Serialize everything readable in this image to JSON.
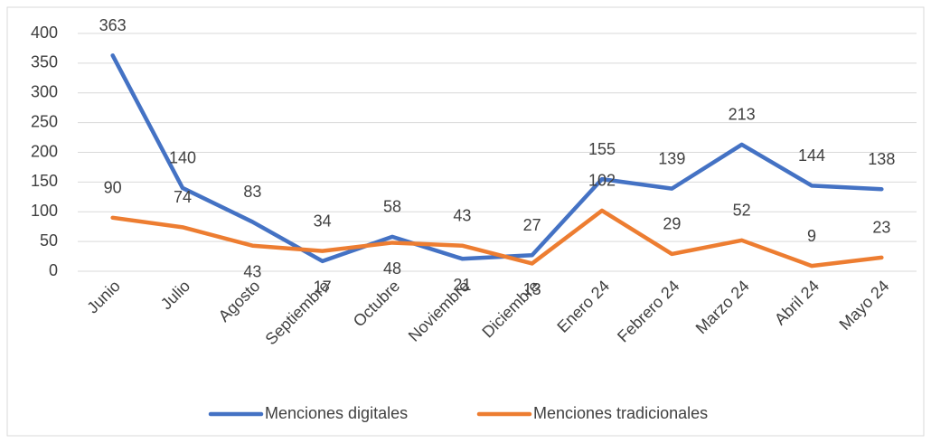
{
  "chart_data": {
    "type": "line",
    "categories": [
      "Junio",
      "Julio",
      "Agosto",
      "Septiembre",
      "Octubre",
      "Noviembre",
      "Diciembre",
      "Enero 24",
      "Febrero 24",
      "Marzo 24",
      "Abril 24",
      "Mayo 24"
    ],
    "series": [
      {
        "name": "Menciones digitales",
        "color": "#4472c4",
        "values": [
          363,
          140,
          83,
          17,
          58,
          21,
          27,
          155,
          139,
          213,
          144,
          138
        ]
      },
      {
        "name": "Menciones tradicionales",
        "color": "#ed7d31",
        "values": [
          90,
          74,
          43,
          34,
          48,
          43,
          13,
          102,
          29,
          52,
          9,
          23
        ]
      }
    ],
    "ylim": [
      0,
      400
    ],
    "yticks": [
      0,
      50,
      100,
      150,
      200,
      250,
      300,
      350,
      400
    ],
    "grid": true,
    "legend": "bottom"
  }
}
